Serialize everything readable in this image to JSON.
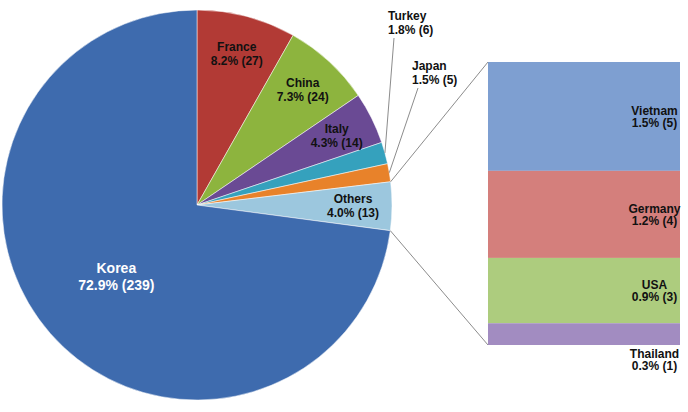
{
  "chart_data": {
    "type": "pie",
    "categories": [
      "France",
      "China",
      "Italy",
      "Turkey",
      "Japan",
      "Others",
      "Korea"
    ],
    "values": [
      8.2,
      7.3,
      4.3,
      1.8,
      1.5,
      4.0,
      72.9
    ],
    "value_labels": [
      "8.2% (27)",
      "7.3% (24)",
      "4.3% (14)",
      "1.8% (6)",
      "1.5% (5)",
      "4.0% (13)",
      "72.9% (239)"
    ],
    "colors": [
      "#b23a35",
      "#8db43e",
      "#6a4a94",
      "#35a1bd",
      "#e8822a",
      "#9cc7de",
      "#3e6bae"
    ],
    "data_labels": true,
    "breakdown": {
      "parent": "Others",
      "type": "bar",
      "stacked": true,
      "categories": [
        "Vietnam",
        "Germany",
        "USA",
        "Thailand"
      ],
      "values": [
        1.5,
        1.2,
        0.9,
        0.3
      ],
      "value_labels": [
        "1.5% (5)",
        "1.2% (4)",
        "0.9% (3)",
        "0.3% (1)"
      ],
      "colors": [
        "#7e9fd1",
        "#d47f7c",
        "#adcc7e",
        "#a28cc1"
      ],
      "data_labels": true
    }
  }
}
